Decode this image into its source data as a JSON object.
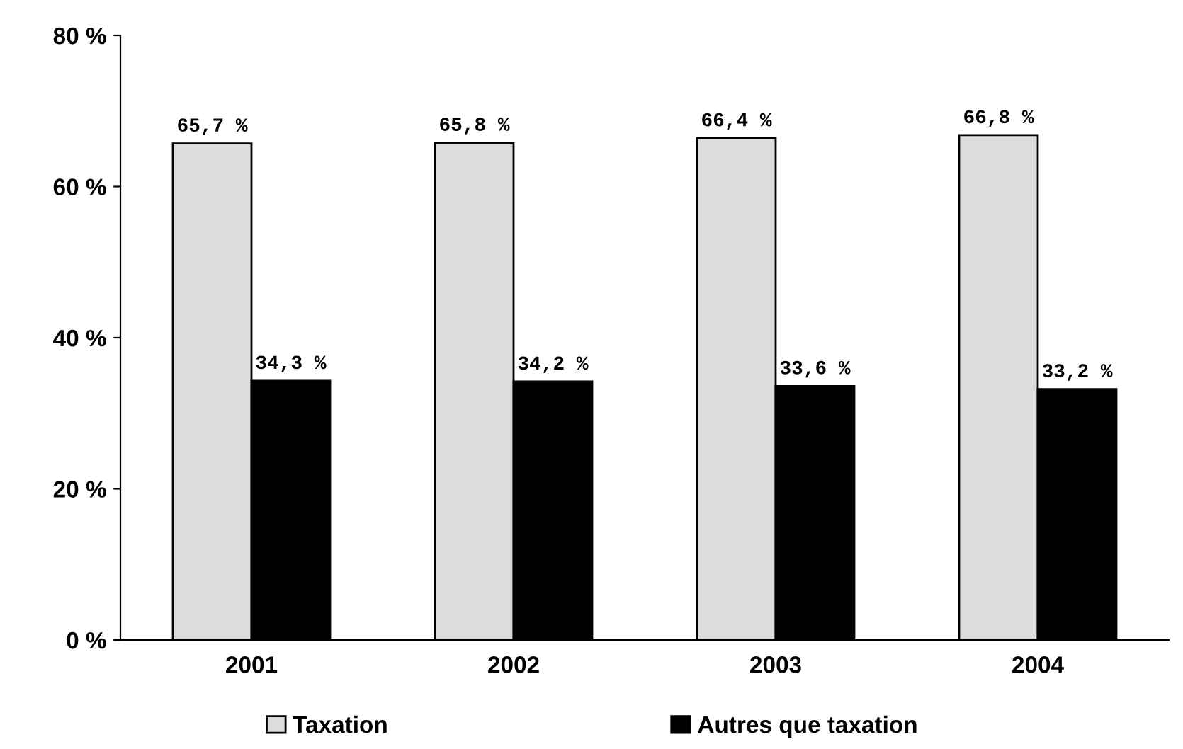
{
  "chart_data": {
    "type": "bar",
    "categories": [
      "2001",
      "2002",
      "2003",
      "2004"
    ],
    "series": [
      {
        "name": "Taxation",
        "color": "#dcdcdc",
        "values": [
          65.7,
          65.8,
          66.4,
          66.8
        ],
        "value_labels": [
          "65,7 %",
          "65,8 %",
          "66,4 %",
          "66,8 %"
        ]
      },
      {
        "name": "Autres que taxation",
        "color": "#000000",
        "values": [
          34.3,
          34.2,
          33.6,
          33.2
        ],
        "value_labels": [
          "34,3 %",
          "34,2 %",
          "33,6 %",
          "33,2 %"
        ]
      }
    ],
    "ylim": [
      0,
      80
    ],
    "yticks": [
      {
        "value": 0,
        "label": "0 %"
      },
      {
        "value": 20,
        "label": "20 %"
      },
      {
        "value": 40,
        "label": "40 %"
      },
      {
        "value": 60,
        "label": "60 %"
      },
      {
        "value": 80,
        "label": "80 %"
      }
    ],
    "grid": false,
    "legend": "bottom"
  }
}
